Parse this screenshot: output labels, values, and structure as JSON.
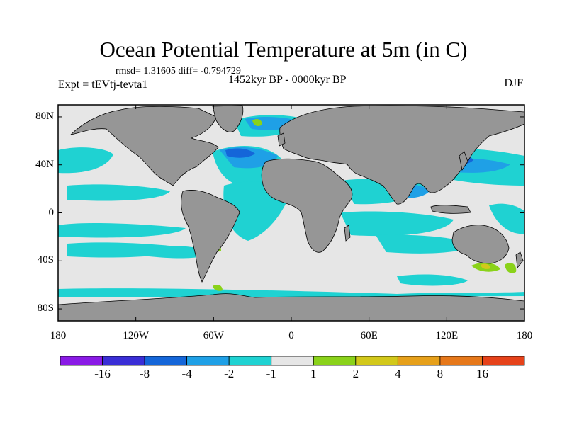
{
  "chart_data": {
    "type": "heatmap",
    "title": "Ocean Potential Temperature at 5m (in C)",
    "stats_label": "rmsd= 1.31605 diff= -0.794729",
    "experiment_label": "Expt = tEVtj-tevta1",
    "period_label": "1452kyr BP - 0000kyr BP",
    "season_label": "DJF",
    "x_ticks": [
      {
        "value": -180,
        "label": "180"
      },
      {
        "value": -120,
        "label": "120W"
      },
      {
        "value": -60,
        "label": "60W"
      },
      {
        "value": 0,
        "label": "0"
      },
      {
        "value": 60,
        "label": "60E"
      },
      {
        "value": 120,
        "label": "120E"
      },
      {
        "value": 180,
        "label": "180"
      }
    ],
    "y_ticks": [
      {
        "value": 80,
        "label": "80N"
      },
      {
        "value": 40,
        "label": "40N"
      },
      {
        "value": 0,
        "label": "0"
      },
      {
        "value": -40,
        "label": "40S"
      },
      {
        "value": -80,
        "label": "80S"
      }
    ],
    "xlim": [
      -180,
      180
    ],
    "ylim": [
      -90,
      90
    ],
    "colorbar": {
      "colors": [
        "#8a1ae6",
        "#3a2ed6",
        "#1466d9",
        "#1fa0e6",
        "#1fd2d2",
        "#e6e6e6",
        "#8ad21a",
        "#d2c81a",
        "#e6a01a",
        "#e6781a",
        "#e6421a"
      ],
      "labels": [
        "-16",
        "-8",
        "-4",
        "-2",
        "-1",
        "1",
        "2",
        "4",
        "8",
        "16"
      ]
    },
    "colors": {
      "land": "#969696",
      "ocean_neutral": "#e6e6e6",
      "cool_light": "#1fd2d2",
      "cool_medium": "#1fa0e6",
      "cool_strong": "#1466d9",
      "warm_light": "#8ad21a",
      "warm_medium": "#d2c81a"
    }
  }
}
